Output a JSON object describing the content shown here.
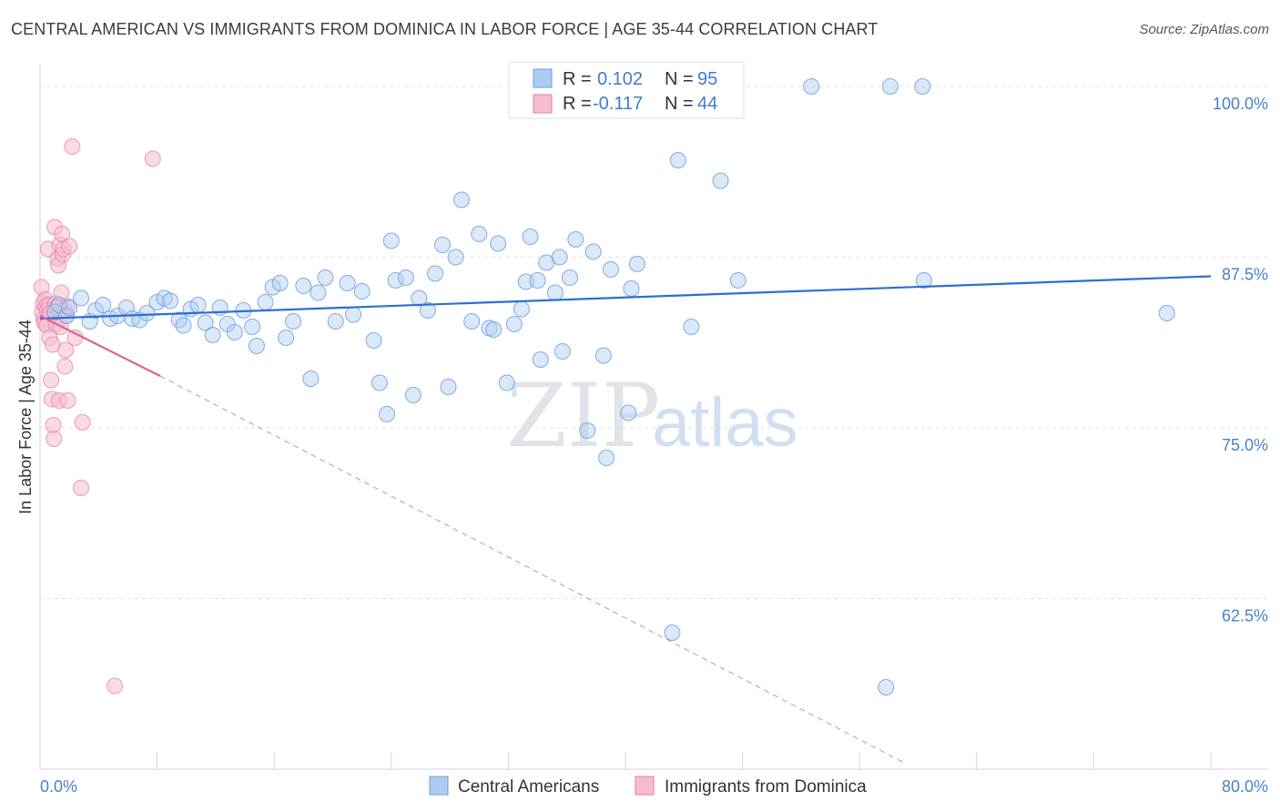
{
  "title": "CENTRAL AMERICAN VS IMMIGRANTS FROM DOMINICA IN LABOR FORCE | AGE 35-44 CORRELATION CHART",
  "source": "Source: ZipAtlas.com",
  "watermark": {
    "zip": "ZIP",
    "atlas": "atlas"
  },
  "colors": {
    "blue": "#6e9fe0",
    "blue_fill": "#aecbf0",
    "blue_line": "#2e6fcf",
    "pink": "#e87ea5",
    "pink_fill": "#f5bcd0",
    "pink_line": "#e0618f",
    "grid": "#dde2ea",
    "tick_label": "#4a80c8"
  },
  "chart_data": {
    "type": "scatter",
    "title": "CENTRAL AMERICAN VS IMMIGRANTS FROM DOMINICA IN LABOR FORCE | AGE 35-44 CORRELATION CHART",
    "xlabel": "",
    "ylabel": "In Labor Force | Age 35-44",
    "xlim": [
      0,
      80
    ],
    "ylim": [
      50,
      101
    ],
    "x_tick_labels": [
      "0.0%",
      "80.0%"
    ],
    "y_ticks": [
      62.5,
      75.0,
      87.5,
      100.0
    ],
    "y_tick_labels": [
      "62.5%",
      "75.0%",
      "87.5%",
      "100.0%"
    ],
    "legend": [
      {
        "r_label": "R = ",
        "r_value": "0.102",
        "n_label": "N = ",
        "n_value": "95"
      },
      {
        "r_label": "R = ",
        "r_value": "-0.117",
        "n_label": "N = ",
        "n_value": "44"
      }
    ],
    "series": [
      {
        "name": "Central Americans",
        "trend": {
          "x0": 0,
          "y0": 83.0,
          "x1": 80,
          "y1": 86.1
        },
        "points": [
          [
            1.0,
            83.5
          ],
          [
            1.3,
            84.0
          ],
          [
            1.8,
            83.2
          ],
          [
            2.0,
            83.8
          ],
          [
            2.8,
            84.5
          ],
          [
            3.4,
            82.8
          ],
          [
            3.8,
            83.6
          ],
          [
            4.3,
            84.0
          ],
          [
            4.8,
            83.0
          ],
          [
            5.3,
            83.2
          ],
          [
            5.9,
            83.8
          ],
          [
            6.3,
            83.0
          ],
          [
            6.8,
            82.9
          ],
          [
            7.3,
            83.4
          ],
          [
            8.0,
            84.2
          ],
          [
            8.5,
            84.5
          ],
          [
            8.9,
            84.3
          ],
          [
            9.5,
            82.9
          ],
          [
            9.8,
            82.5
          ],
          [
            10.3,
            83.7
          ],
          [
            10.8,
            84.0
          ],
          [
            11.3,
            82.7
          ],
          [
            11.8,
            81.8
          ],
          [
            12.3,
            83.8
          ],
          [
            12.8,
            82.6
          ],
          [
            13.3,
            82.0
          ],
          [
            13.9,
            83.6
          ],
          [
            14.5,
            82.4
          ],
          [
            14.8,
            81.0
          ],
          [
            15.4,
            84.2
          ],
          [
            15.9,
            85.3
          ],
          [
            16.4,
            85.6
          ],
          [
            16.8,
            81.6
          ],
          [
            17.3,
            82.8
          ],
          [
            18.0,
            85.4
          ],
          [
            18.5,
            78.6
          ],
          [
            19.0,
            84.9
          ],
          [
            19.5,
            86.0
          ],
          [
            20.2,
            82.8
          ],
          [
            21.0,
            85.6
          ],
          [
            21.4,
            83.3
          ],
          [
            22.0,
            85.0
          ],
          [
            22.8,
            81.4
          ],
          [
            23.2,
            78.3
          ],
          [
            23.7,
            76.0
          ],
          [
            24.0,
            88.7
          ],
          [
            24.3,
            85.8
          ],
          [
            25.0,
            86.0
          ],
          [
            25.5,
            77.4
          ],
          [
            25.9,
            84.5
          ],
          [
            26.5,
            83.6
          ],
          [
            27.0,
            86.3
          ],
          [
            27.5,
            88.4
          ],
          [
            27.9,
            78.0
          ],
          [
            28.4,
            87.5
          ],
          [
            28.8,
            91.7
          ],
          [
            29.5,
            82.8
          ],
          [
            30.0,
            89.2
          ],
          [
            30.7,
            82.3
          ],
          [
            31.0,
            82.2
          ],
          [
            31.3,
            88.5
          ],
          [
            31.9,
            78.3
          ],
          [
            32.4,
            82.6
          ],
          [
            32.9,
            83.7
          ],
          [
            33.2,
            85.7
          ],
          [
            33.5,
            89.0
          ],
          [
            34.0,
            85.8
          ],
          [
            34.2,
            80.0
          ],
          [
            34.6,
            87.1
          ],
          [
            35.2,
            84.9
          ],
          [
            35.5,
            87.5
          ],
          [
            35.7,
            80.6
          ],
          [
            36.2,
            86.0
          ],
          [
            36.6,
            88.8
          ],
          [
            37.4,
            74.8
          ],
          [
            37.8,
            87.9
          ],
          [
            38.5,
            80.3
          ],
          [
            38.7,
            72.8
          ],
          [
            39.0,
            86.6
          ],
          [
            40.2,
            76.1
          ],
          [
            40.4,
            85.2
          ],
          [
            40.8,
            87.0
          ],
          [
            43.2,
            60.0
          ],
          [
            43.6,
            94.6
          ],
          [
            44.5,
            82.4
          ],
          [
            46.5,
            93.1
          ],
          [
            47.7,
            85.8
          ],
          [
            52.7,
            100.0
          ],
          [
            57.8,
            56.0
          ],
          [
            58.1,
            100.0
          ],
          [
            60.3,
            100.0
          ],
          [
            60.4,
            85.8
          ],
          [
            77.0,
            83.4
          ]
        ]
      },
      {
        "name": "Immigrants from Dominica",
        "trend": {
          "x0": 0,
          "y0": 83.2,
          "x1": 8.2,
          "y1": 78.8
        },
        "trend_dashed": {
          "x0": 8.2,
          "y0": 78.8,
          "x1": 59.0,
          "y1": 50.5
        },
        "points": [
          [
            0.1,
            85.3
          ],
          [
            0.15,
            83.5
          ],
          [
            0.2,
            84.1
          ],
          [
            0.25,
            83.0
          ],
          [
            0.3,
            82.7
          ],
          [
            0.35,
            84.4
          ],
          [
            0.4,
            83.9
          ],
          [
            0.45,
            82.5
          ],
          [
            0.5,
            83.6
          ],
          [
            0.55,
            88.1
          ],
          [
            0.6,
            84.0
          ],
          [
            0.65,
            81.6
          ],
          [
            0.7,
            83.4
          ],
          [
            0.75,
            78.5
          ],
          [
            0.8,
            77.1
          ],
          [
            0.85,
            81.1
          ],
          [
            0.9,
            75.2
          ],
          [
            0.95,
            74.2
          ],
          [
            1.0,
            89.7
          ],
          [
            1.05,
            84.1
          ],
          [
            1.1,
            82.6
          ],
          [
            1.15,
            83.8
          ],
          [
            1.2,
            87.4
          ],
          [
            1.25,
            86.9
          ],
          [
            1.3,
            77.0
          ],
          [
            1.35,
            88.4
          ],
          [
            1.4,
            82.4
          ],
          [
            1.45,
            84.9
          ],
          [
            1.5,
            89.2
          ],
          [
            1.55,
            87.7
          ],
          [
            1.6,
            88.1
          ],
          [
            1.65,
            83.6
          ],
          [
            1.7,
            79.5
          ],
          [
            1.75,
            80.7
          ],
          [
            1.8,
            83.2
          ],
          [
            1.85,
            83.9
          ],
          [
            1.9,
            77.0
          ],
          [
            2.0,
            88.3
          ],
          [
            2.2,
            95.6
          ],
          [
            2.4,
            81.6
          ],
          [
            2.8,
            70.6
          ],
          [
            2.9,
            75.4
          ],
          [
            5.1,
            56.1
          ],
          [
            7.7,
            94.7
          ]
        ]
      }
    ]
  },
  "bottom_legend": {
    "series1": "Central Americans",
    "series2": "Immigrants from Dominica"
  }
}
